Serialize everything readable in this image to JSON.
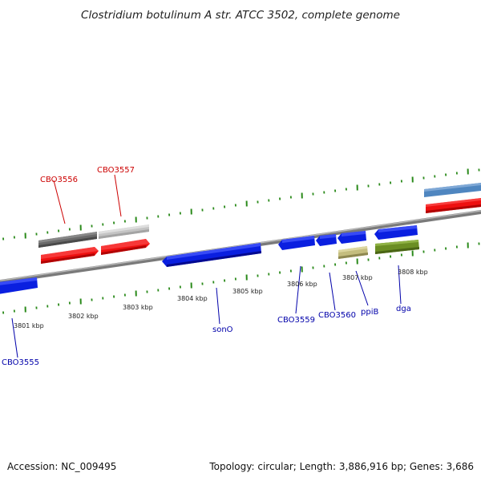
{
  "title": "Clostridium botulinum A str. ATCC 3502, complete genome",
  "footer": {
    "accession": "Accession: NC_009495",
    "topology": "Topology: circular; Length: 3,886,916 bp; Genes: 3,686"
  },
  "colors": {
    "backbone": "#8c8c8c",
    "tick": "#2a8a1a",
    "forward_label": "#cc0000",
    "reverse_label": "#0000aa",
    "blue_gene": "#0a1fe0",
    "red_gene": "#ee1010",
    "dark_gray_gene": "#666666",
    "light_gray_gene": "#c0c0c0",
    "khaki_gene": "#c4bd7e",
    "olive_gene": "#6b8e23",
    "steel_blue_gene": "#4f86c0"
  },
  "kbp_labels": [
    "3801 kbp",
    "3802 kbp",
    "3803 kbp",
    "3804 kbp",
    "3805 kbp",
    "3806 kbp",
    "3807 kbp",
    "3808 kbp"
  ],
  "gene_labels": {
    "top": [
      "CBO3556",
      "CBO3557"
    ],
    "bottom": [
      "CBO3555",
      "sonO",
      "CBO3559",
      "CBO3560",
      "ppiB",
      "dga"
    ]
  }
}
